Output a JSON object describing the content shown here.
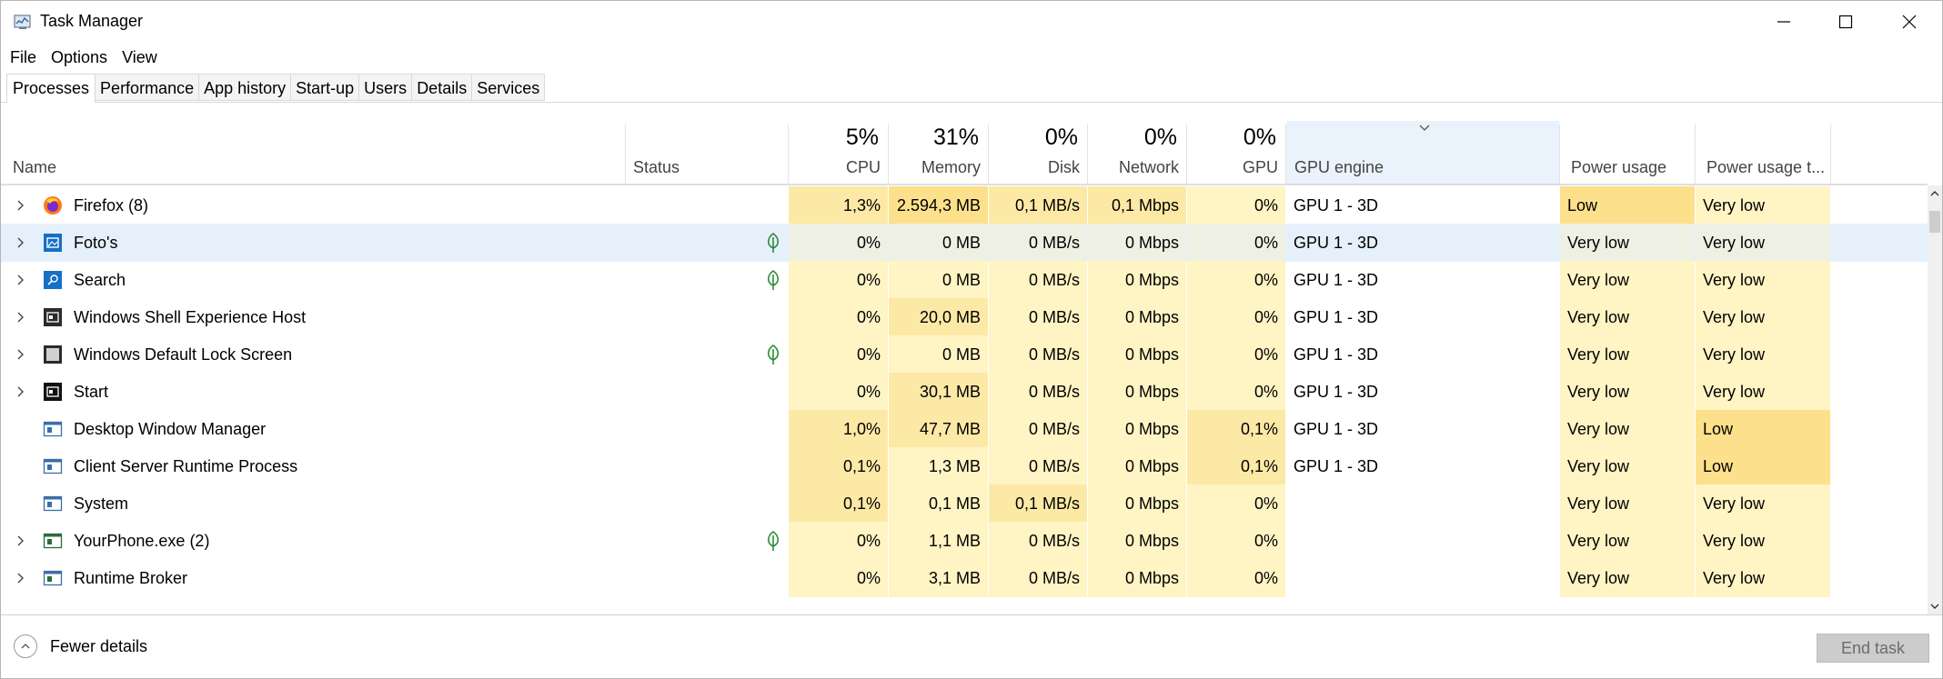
{
  "window": {
    "title": "Task Manager"
  },
  "menu": [
    "File",
    "Options",
    "View"
  ],
  "tabs": [
    {
      "label": "Processes",
      "active": true
    },
    {
      "label": "Performance"
    },
    {
      "label": "App history"
    },
    {
      "label": "Start-up"
    },
    {
      "label": "Users"
    },
    {
      "label": "Details"
    },
    {
      "label": "Services"
    }
  ],
  "columns": {
    "name": "Name",
    "status": "Status",
    "cpu": {
      "pct": "5%",
      "label": "CPU"
    },
    "memory": {
      "pct": "31%",
      "label": "Memory"
    },
    "disk": {
      "pct": "0%",
      "label": "Disk"
    },
    "network": {
      "pct": "0%",
      "label": "Network"
    },
    "gpu": {
      "pct": "0%",
      "label": "GPU"
    },
    "gpu_engine": "GPU engine",
    "power": "Power usage",
    "power_trend": "Power usage t..."
  },
  "processes": [
    {
      "name": "Firefox (8)",
      "expandable": true,
      "icon": "firefox-icon",
      "leaf": false,
      "cpu": "1,3%",
      "memory": "2.594,3 MB",
      "disk": "0,1 MB/s",
      "network": "0,1 Mbps",
      "gpu": "0%",
      "gpu_engine": "GPU 1 - 3D",
      "power": "Low",
      "power_trend": "Very low"
    },
    {
      "name": "Foto's",
      "expandable": true,
      "icon": "photos-icon",
      "leaf": true,
      "selected": true,
      "cpu": "0%",
      "memory": "0 MB",
      "disk": "0 MB/s",
      "network": "0 Mbps",
      "gpu": "0%",
      "gpu_engine": "GPU 1 - 3D",
      "power": "Very low",
      "power_trend": "Very low"
    },
    {
      "name": "Search",
      "expandable": true,
      "icon": "search-app-icon",
      "leaf": true,
      "cpu": "0%",
      "memory": "0 MB",
      "disk": "0 MB/s",
      "network": "0 Mbps",
      "gpu": "0%",
      "gpu_engine": "GPU 1 - 3D",
      "power": "Very low",
      "power_trend": "Very low"
    },
    {
      "name": "Windows Shell Experience Host",
      "expandable": true,
      "icon": "shell-host-icon",
      "leaf": false,
      "cpu": "0%",
      "memory": "20,0 MB",
      "disk": "0 MB/s",
      "network": "0 Mbps",
      "gpu": "0%",
      "gpu_engine": "GPU 1 - 3D",
      "power": "Very low",
      "power_trend": "Very low"
    },
    {
      "name": "Windows Default Lock Screen",
      "expandable": true,
      "icon": "lock-screen-icon",
      "leaf": true,
      "cpu": "0%",
      "memory": "0 MB",
      "disk": "0 MB/s",
      "network": "0 Mbps",
      "gpu": "0%",
      "gpu_engine": "GPU 1 - 3D",
      "power": "Very low",
      "power_trend": "Very low"
    },
    {
      "name": "Start",
      "expandable": true,
      "icon": "start-icon",
      "leaf": false,
      "cpu": "0%",
      "memory": "30,1 MB",
      "disk": "0 MB/s",
      "network": "0 Mbps",
      "gpu": "0%",
      "gpu_engine": "GPU 1 - 3D",
      "power": "Very low",
      "power_trend": "Very low"
    },
    {
      "name": "Desktop Window Manager",
      "expandable": false,
      "icon": "system-window-icon",
      "leaf": false,
      "cpu": "1,0%",
      "memory": "47,7 MB",
      "disk": "0 MB/s",
      "network": "0 Mbps",
      "gpu": "0,1%",
      "gpu_engine": "GPU 1 - 3D",
      "power": "Very low",
      "power_trend": "Low"
    },
    {
      "name": "Client Server Runtime Process",
      "expandable": false,
      "icon": "system-window-icon",
      "leaf": false,
      "cpu": "0,1%",
      "memory": "1,3 MB",
      "disk": "0 MB/s",
      "network": "0 Mbps",
      "gpu": "0,1%",
      "gpu_engine": "GPU 1 - 3D",
      "power": "Very low",
      "power_trend": "Low"
    },
    {
      "name": "System",
      "expandable": false,
      "icon": "system-window-icon",
      "leaf": false,
      "cpu": "0,1%",
      "memory": "0,1 MB",
      "disk": "0,1 MB/s",
      "network": "0 Mbps",
      "gpu": "0%",
      "gpu_engine": "",
      "power": "Very low",
      "power_trend": "Very low"
    },
    {
      "name": "YourPhone.exe (2)",
      "expandable": true,
      "icon": "yourphone-icon",
      "leaf": true,
      "cpu": "0%",
      "memory": "1,1 MB",
      "disk": "0 MB/s",
      "network": "0 Mbps",
      "gpu": "0%",
      "gpu_engine": "",
      "power": "Very low",
      "power_trend": "Very low"
    },
    {
      "name": "Runtime Broker",
      "expandable": true,
      "icon": "runtime-broker-icon",
      "leaf": false,
      "cpu": "0%",
      "memory": "3,1 MB",
      "disk": "0 MB/s",
      "network": "0 Mbps",
      "gpu": "0%",
      "gpu_engine": "",
      "power": "Very low",
      "power_trend": "Very low"
    }
  ],
  "footer": {
    "fewer_details": "Fewer details",
    "end_task": "End task"
  },
  "colors": {
    "heat_light": "#fff4c4",
    "heat_mid": "#fde9a6",
    "heat_strong": "#fce08b",
    "selection": "#e6f0fb",
    "leaf_green": "#2e8b3a"
  }
}
